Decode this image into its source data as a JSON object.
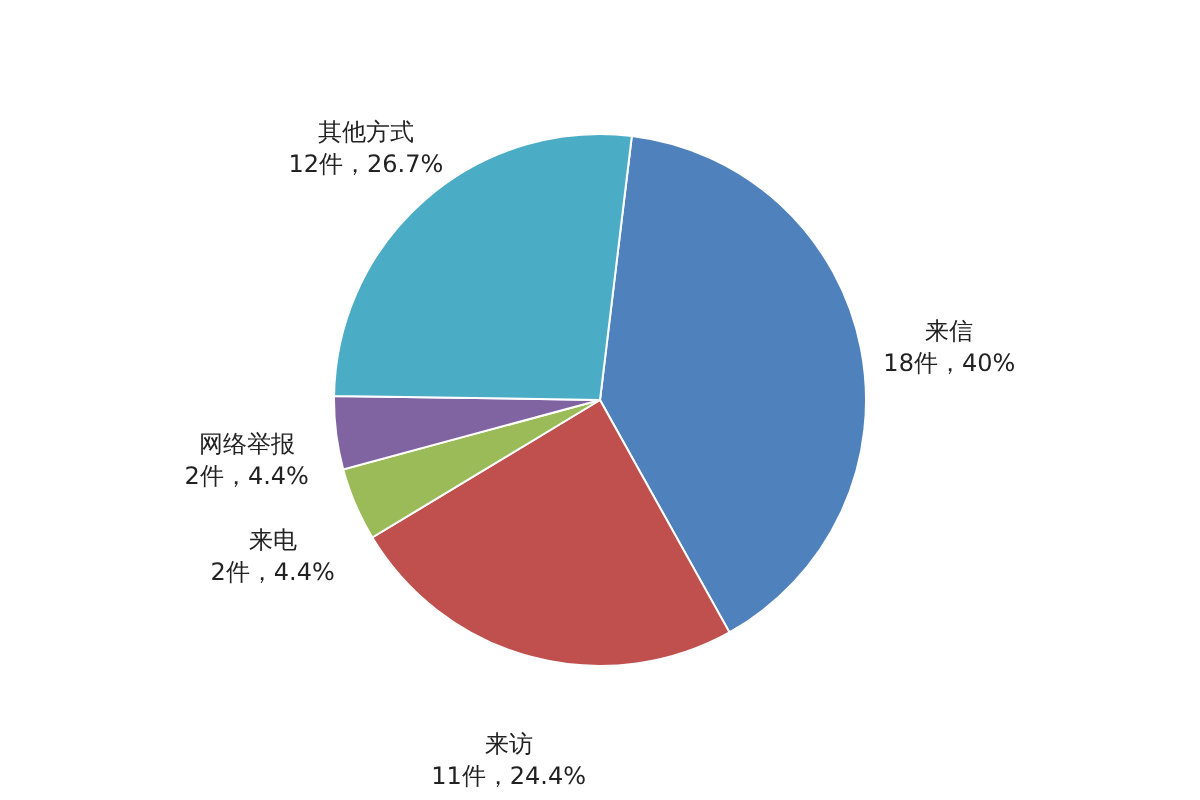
{
  "chart_data": {
    "type": "pie",
    "categories": [
      "来信",
      "来访",
      "来电",
      "网络举报",
      "其他方式"
    ],
    "values": [
      18,
      11,
      2,
      2,
      12
    ],
    "value_labels": [
      "18件，40%",
      "11件，24.4%",
      "2件，4.4%",
      "2件，4.4%",
      "12件，26.7%"
    ],
    "colors": [
      "#4f81bd",
      "#c0504d",
      "#9bbb59",
      "#8064a2",
      "#4bacc6"
    ]
  }
}
